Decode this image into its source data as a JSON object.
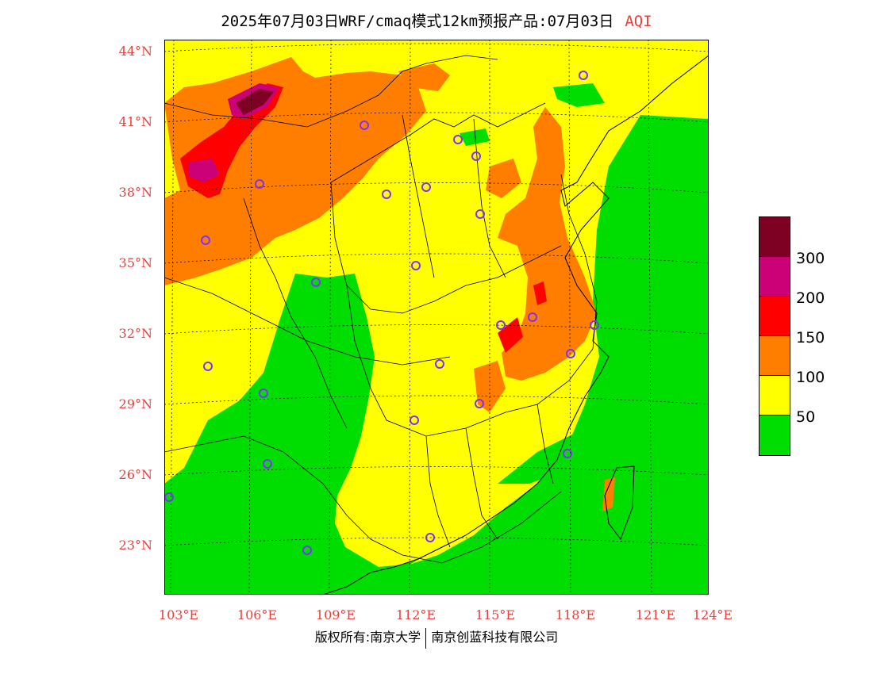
{
  "header": {
    "title": "2025年07月03日WRF/cmaq模式12km预报产品:07月03日",
    "variable": "AQI"
  },
  "map": {
    "lat_ticks": [
      "44°N",
      "41°N",
      "38°N",
      "35°N",
      "32°N",
      "29°N",
      "26°N",
      "23°N"
    ],
    "lon_ticks": [
      "103°E",
      "106°E",
      "109°E",
      "112°E",
      "115°E",
      "118°E",
      "121°E",
      "124°E"
    ],
    "palette": {
      "good": "#00dd00",
      "moderate": "#ffff00",
      "sensitive": "#ff7e00",
      "unhealthy": "#ff0000",
      "very_unhealthy": "#cc0077",
      "hazardous": "#7e0023"
    },
    "station_color": "#8030ff"
  },
  "legend": {
    "labels": [
      "300",
      "200",
      "150",
      "100",
      "50"
    ],
    "colors": [
      "#7e0023",
      "#cc0077",
      "#ff0000",
      "#ff7e00",
      "#ffff00",
      "#00dd00"
    ]
  },
  "footer": {
    "copyright": "版权所有:南京大学",
    "company": "南京创蓝科技有限公司"
  }
}
